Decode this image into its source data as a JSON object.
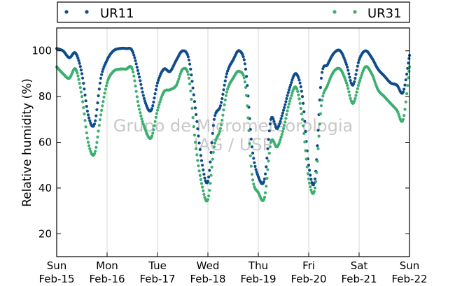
{
  "chart_data": {
    "type": "scatter",
    "title": "",
    "xlabel": "",
    "ylabel": "Relative humidity (%)",
    "ylim": [
      10,
      110
    ],
    "yticks": [
      20,
      40,
      60,
      80,
      100
    ],
    "xlim": [
      "2015-02-15T00:00",
      "2015-02-22T00:00"
    ],
    "xtick_labels": [
      {
        "day": "Sun",
        "date": "Feb-15"
      },
      {
        "day": "Mon",
        "date": "Feb-16"
      },
      {
        "day": "Tue",
        "date": "Feb-17"
      },
      {
        "day": "Wed",
        "date": "Feb-18"
      },
      {
        "day": "Thu",
        "date": "Feb-19"
      },
      {
        "day": "Fri",
        "date": "Feb-20"
      },
      {
        "day": "Sat",
        "date": "Feb-21"
      },
      {
        "day": "Sun",
        "date": "Feb-22"
      }
    ],
    "grid": "vertical",
    "legend_position": "top, outside plot",
    "watermark": [
      "Grupo de Micrometeorologia",
      "IAG / USP"
    ],
    "series": [
      {
        "name": "UR11",
        "color": "#0f4c8a",
        "x": [
          "2015-02-15T00:00",
          "2015-02-15T03:00",
          "2015-02-15T06:00",
          "2015-02-15T09:00",
          "2015-02-15T12:00",
          "2015-02-15T15:00",
          "2015-02-15T18:00",
          "2015-02-15T21:00",
          "2015-02-16T00:00",
          "2015-02-16T03:00",
          "2015-02-16T06:00",
          "2015-02-16T09:00",
          "2015-02-16T12:00",
          "2015-02-16T15:00",
          "2015-02-16T18:00",
          "2015-02-16T21:00",
          "2015-02-17T00:00",
          "2015-02-17T03:00",
          "2015-02-17T06:00",
          "2015-02-17T09:00",
          "2015-02-17T12:00",
          "2015-02-17T15:00",
          "2015-02-17T18:00",
          "2015-02-17T21:00",
          "2015-02-18T00:00",
          "2015-02-18T03:00",
          "2015-02-18T06:00",
          "2015-02-18T09:00",
          "2015-02-18T12:00",
          "2015-02-18T15:00",
          "2015-02-18T18:00",
          "2015-02-18T21:00",
          "2015-02-19T00:00",
          "2015-02-19T03:00",
          "2015-02-19T06:00",
          "2015-02-19T09:00",
          "2015-02-19T12:00",
          "2015-02-19T15:00",
          "2015-02-19T18:00",
          "2015-02-19T21:00",
          "2015-02-20T00:00",
          "2015-02-20T03:00",
          "2015-02-20T06:00",
          "2015-02-20T09:00",
          "2015-02-20T12:00",
          "2015-02-20T15:00",
          "2015-02-20T18:00",
          "2015-02-20T21:00",
          "2015-02-21T00:00",
          "2015-02-21T03:00",
          "2015-02-21T06:00",
          "2015-02-21T09:00",
          "2015-02-21T12:00",
          "2015-02-21T15:00",
          "2015-02-21T18:00",
          "2015-02-21T21:00",
          "2015-02-22T00:00"
        ],
        "values": [
          101,
          100,
          97,
          99,
          90,
          72,
          68,
          88,
          96,
          100,
          101,
          101,
          100,
          90,
          78,
          74,
          86,
          92,
          91,
          96,
          100,
          96,
          75,
          52,
          43,
          70,
          76,
          90,
          96,
          100,
          92,
          58,
          45,
          44,
          70,
          66,
          74,
          84,
          90,
          80,
          50,
          44,
          88,
          94,
          99,
          100,
          94,
          85,
          96,
          100,
          97,
          92,
          89,
          86,
          85,
          82,
          98
        ]
      },
      {
        "name": "UR31",
        "color": "#3aaf6e",
        "x": [
          "2015-02-15T00:00",
          "2015-02-15T03:00",
          "2015-02-15T06:00",
          "2015-02-15T09:00",
          "2015-02-15T12:00",
          "2015-02-15T15:00",
          "2015-02-15T18:00",
          "2015-02-15T21:00",
          "2015-02-16T00:00",
          "2015-02-16T03:00",
          "2015-02-16T06:00",
          "2015-02-16T09:00",
          "2015-02-16T12:00",
          "2015-02-16T15:00",
          "2015-02-16T18:00",
          "2015-02-16T21:00",
          "2015-02-17T00:00",
          "2015-02-17T03:00",
          "2015-02-17T06:00",
          "2015-02-17T09:00",
          "2015-02-17T12:00",
          "2015-02-17T15:00",
          "2015-02-17T18:00",
          "2015-02-17T21:00",
          "2015-02-18T00:00",
          "2015-02-18T03:00",
          "2015-02-18T06:00",
          "2015-02-18T09:00",
          "2015-02-18T12:00",
          "2015-02-18T15:00",
          "2015-02-18T18:00",
          "2015-02-18T21:00",
          "2015-02-19T00:00",
          "2015-02-19T03:00",
          "2015-02-19T06:00",
          "2015-02-19T09:00",
          "2015-02-19T12:00",
          "2015-02-19T15:00",
          "2015-02-19T18:00",
          "2015-02-19T21:00",
          "2015-02-20T00:00",
          "2015-02-20T03:00",
          "2015-02-20T06:00",
          "2015-02-20T09:00",
          "2015-02-20T12:00",
          "2015-02-20T15:00",
          "2015-02-20T18:00",
          "2015-02-20T21:00",
          "2015-02-21T00:00",
          "2015-02-21T03:00",
          "2015-02-21T06:00",
          "2015-02-21T09:00",
          "2015-02-21T12:00",
          "2015-02-21T15:00",
          "2015-02-21T18:00",
          "2015-02-21T21:00",
          "2015-02-22T00:00"
        ],
        "values": [
          93,
          90,
          88,
          92,
          80,
          60,
          55,
          72,
          86,
          91,
          92,
          92,
          92,
          76,
          66,
          62,
          74,
          82,
          83,
          85,
          92,
          88,
          60,
          42,
          35,
          58,
          66,
          82,
          88,
          91,
          84,
          46,
          38,
          36,
          60,
          58,
          66,
          78,
          84,
          70,
          44,
          40,
          76,
          85,
          91,
          92,
          86,
          77,
          86,
          93,
          90,
          83,
          80,
          77,
          74,
          70,
          93
        ]
      }
    ]
  }
}
